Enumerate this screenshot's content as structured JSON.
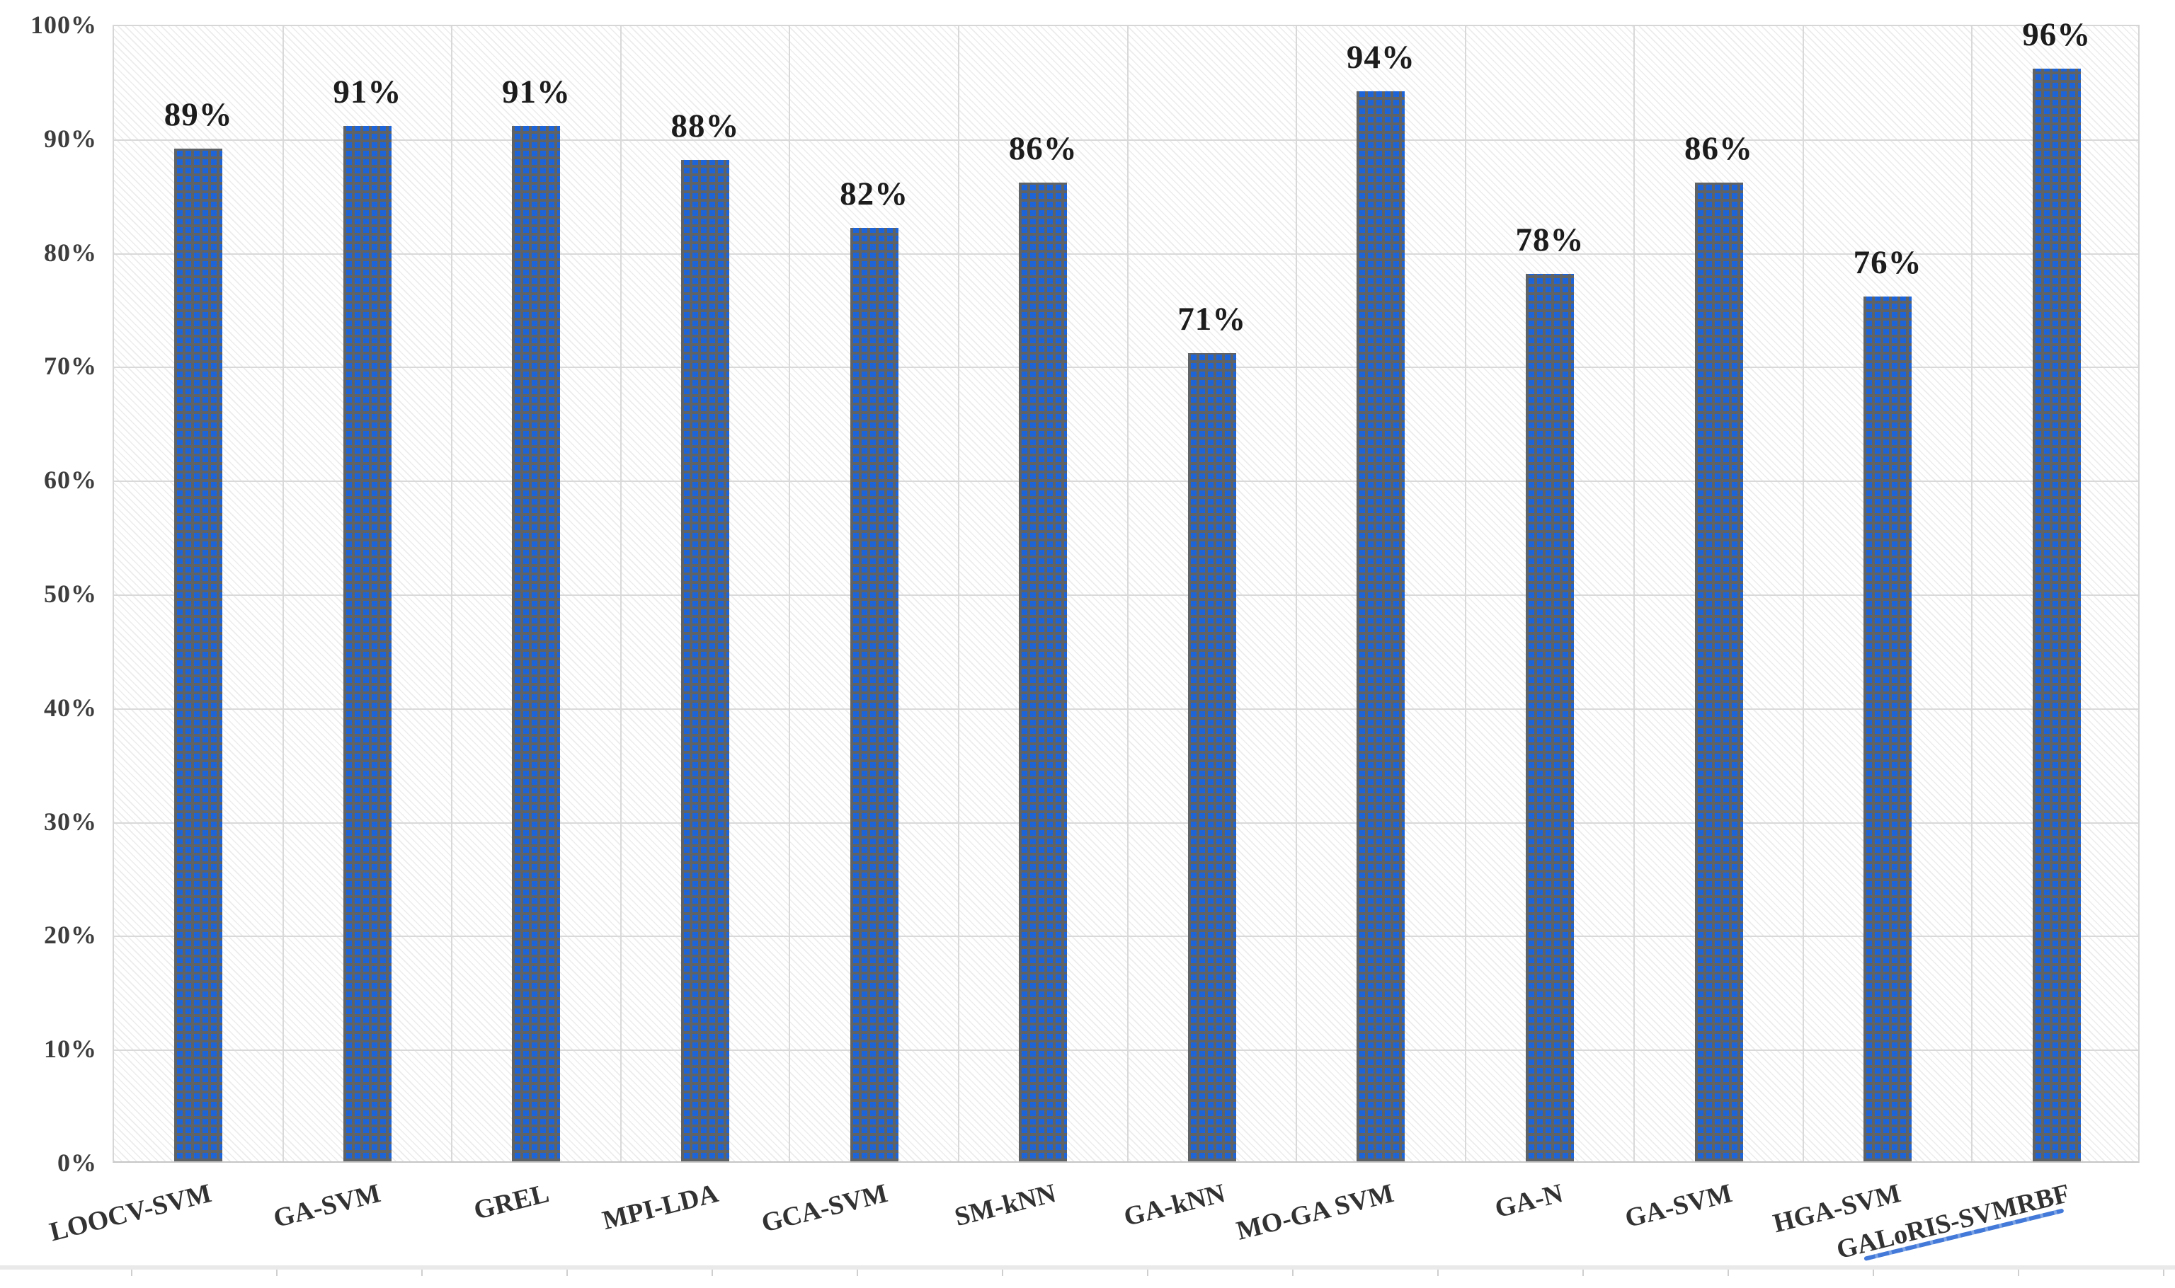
{
  "chart_data": {
    "type": "bar",
    "categories": [
      "LOOCV-SVM",
      "GA-SVM",
      "GREL",
      "MPI-LDA",
      "GCA-SVM",
      "SM-kNN",
      "GA-kNN",
      "MO-GA SVM",
      "GA-N",
      "GA-SVM",
      "HGA-SVM",
      "GALoRIS-SVMRBF"
    ],
    "values": [
      89,
      91,
      91,
      88,
      82,
      86,
      71,
      94,
      78,
      86,
      76,
      96
    ],
    "data_labels": [
      "89%",
      "91%",
      "91%",
      "88%",
      "82%",
      "86%",
      "71%",
      "94%",
      "78%",
      "86%",
      "76%",
      "96%"
    ],
    "y_tick_labels": [
      "100%",
      "90%",
      "80%",
      "70%",
      "60%",
      "50%",
      "40%",
      "30%",
      "20%",
      "10%",
      "0%"
    ],
    "ylim": [
      0,
      100
    ],
    "y_step": 10,
    "title": "",
    "xlabel": "",
    "ylabel": "",
    "grid": true,
    "legend": false,
    "bar_fill_style": "blue squares on dark-gray grid (small-grid pattern)",
    "plot_background_style": "light diagonal hatch",
    "colors": {
      "bar": "#1c64d8",
      "bar_grid": "#606365",
      "gridline": "#d9d9d9",
      "data_label": "#1c1c1c",
      "axis_label": "#3d3d3d",
      "annotation_line": "#4379d8"
    },
    "annotation": {
      "target_category": "GALoRIS-SVMRBF",
      "type": "underline",
      "color": "#4379d8"
    }
  }
}
